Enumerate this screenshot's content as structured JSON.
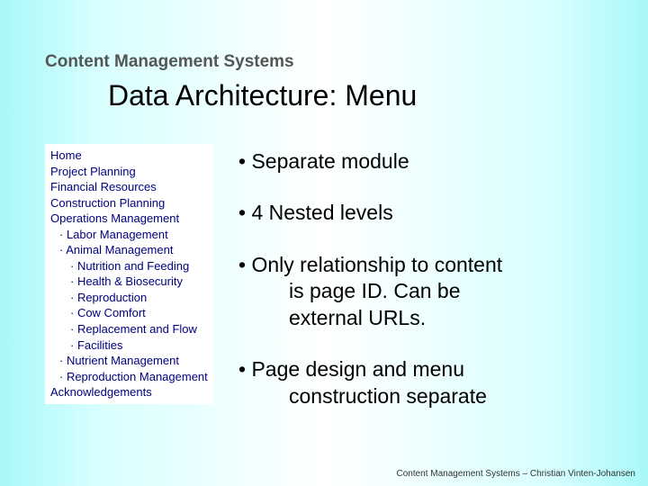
{
  "header": "Content Management Systems",
  "title": "Data Architecture: Menu",
  "menu": {
    "l0_0": "Home",
    "l0_1": "Project Planning",
    "l0_2": "Financial Resources",
    "l0_3": "Construction Planning",
    "l0_4": "Operations Management",
    "l1_0": "· Labor Management",
    "l1_1": "· Animal Management",
    "l2_0": "· Nutrition and Feeding",
    "l2_1": "· Health & Biosecurity",
    "l2_2": "· Reproduction",
    "l2_3": "· Cow Comfort",
    "l2_4": "· Replacement and Flow",
    "l2_5": "· Facilities",
    "l1_2": "· Nutrient Management",
    "l1_3": "· Reproduction Management",
    "l0_5": "Acknowledgements"
  },
  "bullets": {
    "b1": "• Separate module",
    "b2": "• 4 Nested levels",
    "b3_l1": "• Only relationship to content",
    "b3_l2": "is page ID. Can be",
    "b3_l3": "external URLs.",
    "b4_l1": "• Page design and menu",
    "b4_l2": "construction separate"
  },
  "footer": "Content Management Systems – Christian Vinten-Johansen"
}
